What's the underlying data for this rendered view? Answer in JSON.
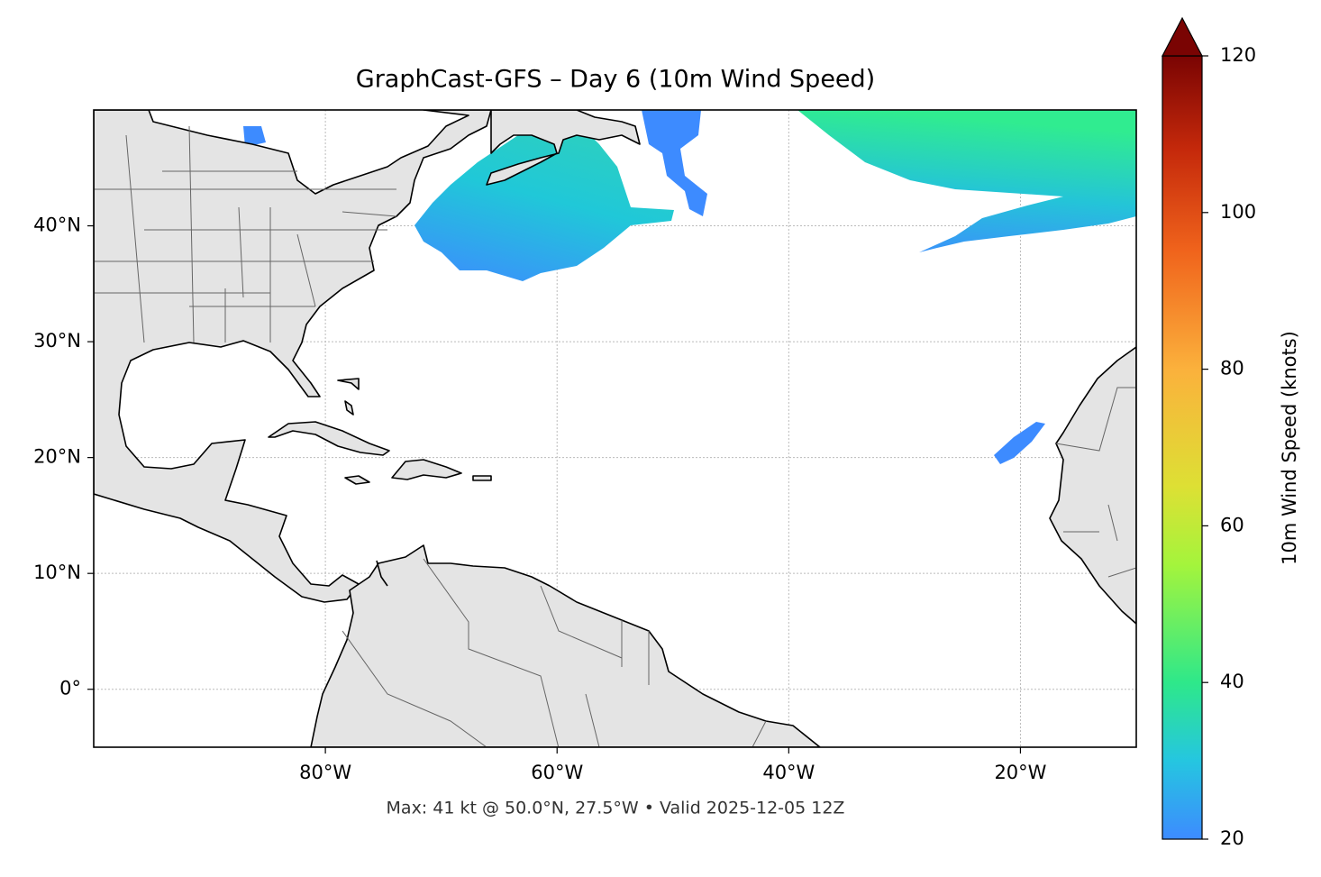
{
  "chart_data": {
    "type": "map",
    "title": "GraphCast-GFS – Day 6 (10m Wind Speed)",
    "annotation": "Max: 41 kt @ 50.0°N, 27.5°W • Valid 2025-12-05 12Z",
    "xlim": [
      -100,
      -10
    ],
    "ylim": [
      -5,
      50
    ],
    "xticks": [
      {
        "value": -80,
        "label": "80°W"
      },
      {
        "value": -60,
        "label": "60°W"
      },
      {
        "value": -40,
        "label": "40°W"
      },
      {
        "value": -20,
        "label": "20°W"
      }
    ],
    "yticks": [
      {
        "value": 0,
        "label": "0°"
      },
      {
        "value": 10,
        "label": "10°N"
      },
      {
        "value": 20,
        "label": "20°N"
      },
      {
        "value": 30,
        "label": "30°N"
      },
      {
        "value": 40,
        "label": "40°N"
      }
    ],
    "grid": true,
    "colorbar": {
      "label": "10m Wind Speed (knots)",
      "lim": [
        20,
        120
      ],
      "ticks": [
        20,
        40,
        60,
        80,
        100,
        120
      ]
    }
  }
}
